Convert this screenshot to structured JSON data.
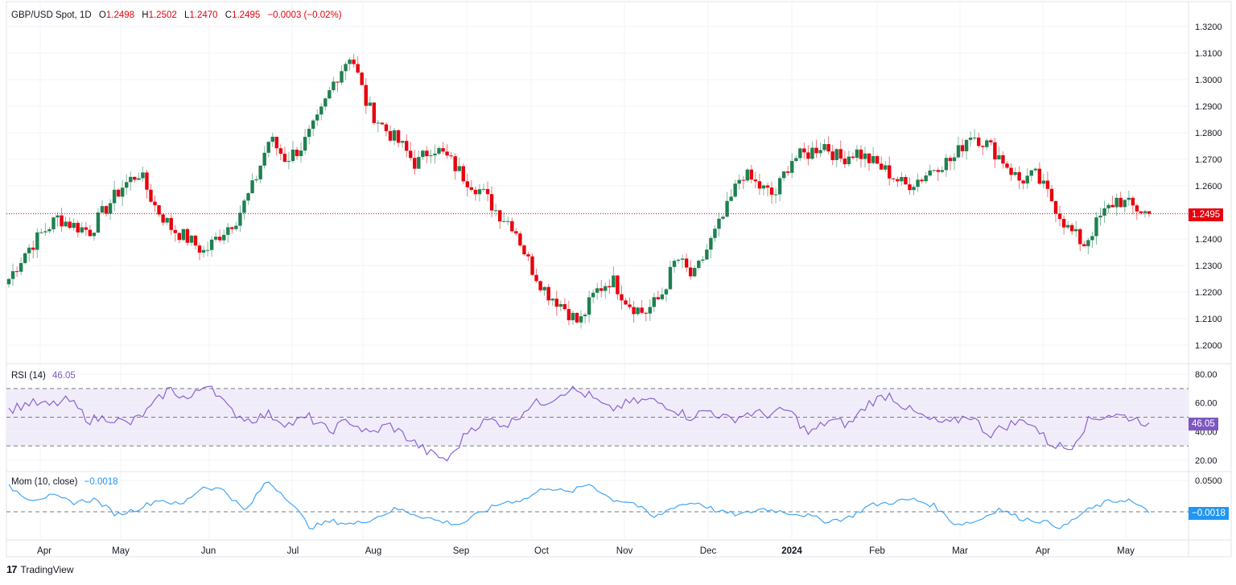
{
  "header": {
    "symbol": "GBP/USD Spot, 1D",
    "open_label": "O",
    "open": "1.2498",
    "high_label": "H",
    "high": "1.2502",
    "low_label": "L",
    "low": "1.2470",
    "close_label": "C",
    "close": "1.2495",
    "change": "−0.0003 (−0.02%)"
  },
  "price_axis": {
    "ticks": [
      "1.3200",
      "1.3100",
      "1.3000",
      "1.2900",
      "1.2800",
      "1.2700",
      "1.2600",
      "1.2500",
      "1.2400",
      "1.2300",
      "1.2200",
      "1.2100",
      "1.2000"
    ],
    "last_price_tag": "1.2495"
  },
  "rsi": {
    "label": "RSI (14)",
    "value": "46.05",
    "ticks": [
      "80.00",
      "60.00",
      "40.00",
      "20.00"
    ],
    "tag": "46.05"
  },
  "momentum": {
    "label": "Mom (10, close)",
    "value": "−0.0018",
    "ticks": [
      "0.0500"
    ],
    "tag": "−0.0018"
  },
  "time_axis": {
    "labels": [
      "Apr",
      "May",
      "Jun",
      "Jul",
      "Aug",
      "Sep",
      "Oct",
      "Nov",
      "Dec",
      "2024",
      "Feb",
      "Mar",
      "Apr",
      "May"
    ]
  },
  "footer": {
    "brand": "TradingView",
    "logo_glyph": "17"
  },
  "colors": {
    "up": "#1f8051",
    "down": "#e8000d",
    "rsi_line": "#8a63d2",
    "rsi_band": "#f1ecfa",
    "mom_line": "#42a5f5",
    "last_price": "#e8000d",
    "rsi_tag": "#7e57c2",
    "mom_tag": "#2196f3",
    "grid": "#f0f3fa",
    "axis_text": "#131722"
  },
  "chart_data": [
    {
      "type": "candlestick",
      "title": "GBP/USD Spot, 1D",
      "xlabel": "",
      "ylabel": "",
      "ylim": [
        1.195,
        1.325
      ],
      "grid": true,
      "x": [
        "Apr",
        "May",
        "Jun",
        "Jul",
        "Aug",
        "Sep",
        "Oct",
        "Nov",
        "Dec",
        "2024",
        "Feb",
        "Mar",
        "Apr",
        "May"
      ],
      "approx_weekly_close": [
        1.225,
        1.235,
        1.242,
        1.248,
        1.245,
        1.243,
        1.252,
        1.26,
        1.265,
        1.252,
        1.244,
        1.24,
        1.235,
        1.242,
        1.248,
        1.26,
        1.278,
        1.27,
        1.275,
        1.285,
        1.3,
        1.31,
        1.29,
        1.282,
        1.276,
        1.268,
        1.275,
        1.27,
        1.263,
        1.258,
        1.25,
        1.245,
        1.23,
        1.22,
        1.215,
        1.208,
        1.22,
        1.225,
        1.216,
        1.212,
        1.218,
        1.233,
        1.225,
        1.238,
        1.25,
        1.265,
        1.26,
        1.256,
        1.27,
        1.272,
        1.276,
        1.27,
        1.273,
        1.269,
        1.265,
        1.26,
        1.263,
        1.268,
        1.27,
        1.28,
        1.276,
        1.27,
        1.262,
        1.264,
        1.255,
        1.244,
        1.238,
        1.248,
        1.255,
        1.252,
        1.2495
      ],
      "last_close": 1.2495,
      "high_extreme": 1.3142,
      "low_extreme": 1.2037
    },
    {
      "type": "line",
      "title": "RSI (14)",
      "ylim": [
        15,
        85
      ],
      "bands": [
        30,
        50,
        70
      ],
      "last_value": 46.05,
      "approx_weekly": [
        55,
        60,
        58,
        62,
        48,
        50,
        45,
        55,
        70,
        62,
        75,
        55,
        48,
        52,
        45,
        50,
        40,
        48,
        38,
        45,
        35,
        25,
        20,
        42,
        48,
        45,
        58,
        62,
        70,
        65,
        55,
        60,
        62,
        58,
        50,
        55,
        48,
        53,
        52,
        55,
        38,
        48,
        45,
        60,
        66,
        55,
        48,
        45,
        52,
        38,
        45,
        48,
        32,
        28,
        48,
        52,
        50,
        46
      ]
    },
    {
      "type": "line",
      "title": "Mom (10, close)",
      "ylim": [
        -0.03,
        0.055
      ],
      "zero_line": 0,
      "last_value": -0.0018,
      "approx_weekly": [
        0.04,
        0.02,
        0.025,
        0.015,
        0.02,
        -0.005,
        0.005,
        0.02,
        0.01,
        0.04,
        0.035,
        0.0,
        0.05,
        0.02,
        -0.025,
        -0.015,
        -0.02,
        -0.01,
        0.005,
        -0.005,
        -0.015,
        -0.02,
        0.0,
        0.015,
        0.02,
        0.04,
        0.03,
        0.045,
        0.02,
        0.015,
        -0.01,
        0.01,
        0.015,
        0.0,
        -0.005,
        0.005,
        0.0,
        -0.005,
        -0.015,
        -0.01,
        0.01,
        0.015,
        0.02,
        0.01,
        -0.02,
        -0.015,
        0.005,
        -0.01,
        -0.015,
        -0.025,
        0.0,
        0.015,
        0.02,
        -0.0018
      ]
    }
  ]
}
